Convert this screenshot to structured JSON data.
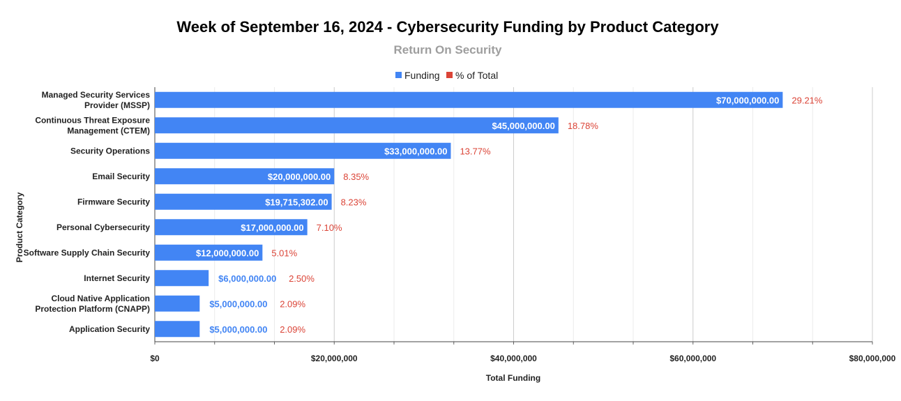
{
  "chart_data": {
    "type": "bar",
    "orientation": "horizontal",
    "title": "Week of September 16, 2024 - Cybersecurity Funding by Product Category",
    "subtitle": "Return On Security",
    "xlabel": "Total Funding",
    "ylabel": "Product Category",
    "xlim": [
      0,
      80000000
    ],
    "x_ticks": [
      {
        "value": 0,
        "label": "$0"
      },
      {
        "value": 20000000,
        "label": "$20,000,000"
      },
      {
        "value": 40000000,
        "label": "$40,000,000"
      },
      {
        "value": 60000000,
        "label": "$60,000,000"
      },
      {
        "value": 80000000,
        "label": "$80,000,000"
      }
    ],
    "legend": {
      "position": "top-center",
      "entries": [
        {
          "name": "Funding",
          "color": "#4285f4"
        },
        {
          "name": "% of Total",
          "color": "#db4437"
        }
      ]
    },
    "categories": [
      [
        "Managed Security Services",
        "Provider (MSSP)"
      ],
      [
        "Continuous Threat Exposure",
        "Management (CTEM)"
      ],
      [
        "Security Operations"
      ],
      [
        "Email Security"
      ],
      [
        "Firmware Security"
      ],
      [
        "Personal Cybersecurity"
      ],
      [
        "Software Supply Chain Security"
      ],
      [
        "Internet Security"
      ],
      [
        "Cloud Native Application",
        "Protection Platform (CNAPP)"
      ],
      [
        "Application Security"
      ]
    ],
    "series": [
      {
        "name": "Funding",
        "color": "#4285f4",
        "values": [
          70000000,
          45000000,
          33000000,
          20000000,
          19715302,
          17000000,
          12000000,
          6000000,
          5000000,
          5000000
        ],
        "labels": [
          "$70,000,000.00",
          "$45,000,000.00",
          "$33,000,000.00",
          "$20,000,000.00",
          "$19,715,302.00",
          "$17,000,000.00",
          "$12,000,000.00",
          "$6,000,000.00",
          "$5,000,000.00",
          "$5,000,000.00"
        ]
      },
      {
        "name": "% of Total",
        "color": "#db4437",
        "values": [
          29.21,
          18.78,
          13.77,
          8.35,
          8.23,
          7.1,
          5.01,
          2.5,
          2.09,
          2.09
        ],
        "labels": [
          "29.21%",
          "18.78%",
          "13.77%",
          "8.35%",
          "8.23%",
          "7.10%",
          "5.01%",
          "2.50%",
          "2.09%",
          "2.09%"
        ]
      }
    ],
    "grid": true
  }
}
